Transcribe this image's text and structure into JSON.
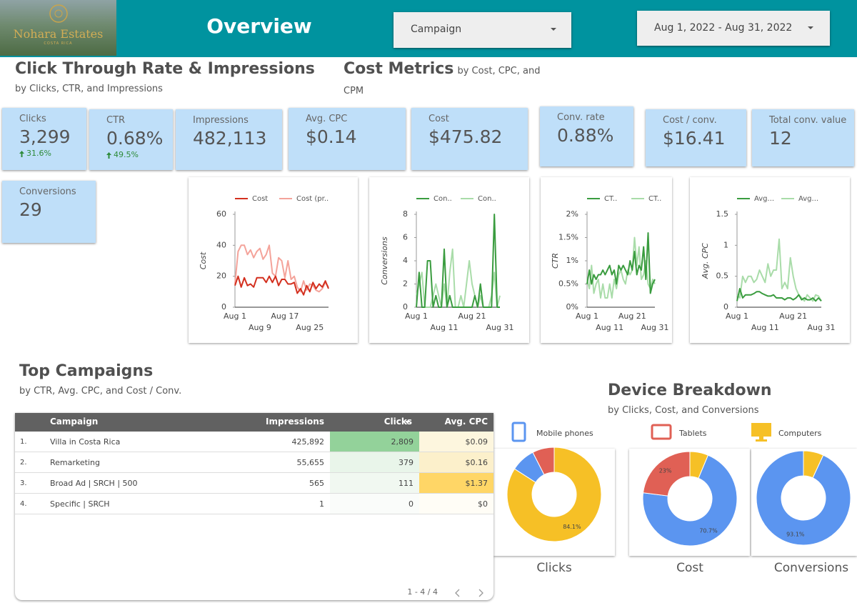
{
  "header": {
    "logo_text": "Nohara Estates",
    "logo_subtext": "COSTA RICA",
    "title": "Overview",
    "campaign_filter": "Campaign",
    "date_range": "Aug 1, 2022 - Aug 31, 2022"
  },
  "sections": {
    "ctr": {
      "title": "Click Through Rate & Impressions",
      "subtitle": "by Clicks, CTR, and Impressions"
    },
    "cost": {
      "title": "Cost Metrics",
      "subtitle": "by Cost, CPC, and CPM"
    },
    "campaigns": {
      "title": "Top Campaigns",
      "subtitle": "by CTR, Avg. CPC, and Cost / Conv."
    },
    "devices": {
      "title": "Device Breakdown",
      "subtitle": "by Clicks, Cost, and Conversions"
    }
  },
  "kpis": [
    {
      "label": "Clicks",
      "value": "3,299",
      "delta": "31.6%"
    },
    {
      "label": "CTR",
      "value": "0.68%",
      "delta": "49.5%"
    },
    {
      "label": "Impressions",
      "value": "482,113"
    },
    {
      "label": "Avg. CPC",
      "value": "$0.14"
    },
    {
      "label": "Cost",
      "value": "$475.82"
    },
    {
      "label": "Conv. rate",
      "value": "0.88%"
    },
    {
      "label": "Cost / conv.",
      "value": "$16.41"
    },
    {
      "label": "Total conv. value",
      "value": "12"
    },
    {
      "label": "Conversions",
      "value": "29"
    }
  ],
  "chart_data": [
    {
      "type": "line",
      "y_label": "Cost",
      "categories": [
        "Aug 1",
        null,
        null,
        null,
        null,
        null,
        null,
        null,
        "Aug 9",
        null,
        null,
        null,
        null,
        null,
        null,
        null,
        "Aug 17",
        null,
        null,
        null,
        null,
        null,
        null,
        null,
        "Aug 25",
        null,
        null,
        null,
        null,
        null,
        null
      ],
      "ylim": [
        0,
        60
      ],
      "yticks": [
        0,
        20,
        40,
        60
      ],
      "grid": false,
      "series": [
        {
          "name": "Cost",
          "color": "#d32f1e",
          "values": [
            14,
            20,
            13,
            19,
            14,
            15,
            13,
            19,
            19,
            19,
            16,
            20,
            16,
            20,
            14,
            18,
            18,
            15,
            15,
            16,
            9,
            12,
            8,
            14,
            10,
            16,
            12,
            15,
            13,
            17,
            12
          ]
        },
        {
          "name": "Cost (pr..",
          "color": "#f4a39a",
          "values": [
            15,
            36,
            40,
            40,
            34,
            37,
            32,
            36,
            38,
            31,
            34,
            40,
            22,
            20,
            32,
            30,
            19,
            30,
            18,
            20,
            13,
            10,
            17,
            11,
            15,
            14,
            11,
            10,
            12,
            16,
            13
          ]
        }
      ]
    },
    {
      "type": "line",
      "y_label": "Conversions",
      "categories": [
        "Aug 1",
        null,
        null,
        null,
        null,
        null,
        null,
        null,
        null,
        null,
        "Aug 11",
        null,
        null,
        null,
        null,
        null,
        null,
        null,
        null,
        null,
        "Aug 21",
        null,
        null,
        null,
        null,
        null,
        null,
        null,
        null,
        null,
        "Aug 31"
      ],
      "ylim": [
        0,
        8
      ],
      "yticks": [
        0,
        2,
        4,
        6,
        8
      ],
      "grid": false,
      "series": [
        {
          "name": "Con..",
          "color": "#3a9c3f",
          "values": [
            0,
            3,
            0,
            0,
            4,
            4,
            0,
            1,
            0,
            0,
            5,
            0,
            1,
            0,
            0,
            0,
            0,
            0,
            0,
            0,
            0,
            1,
            0,
            2,
            0,
            0,
            0,
            0,
            8,
            0,
            0
          ]
        },
        {
          "name": "Con..",
          "color": "#a9dca9",
          "values": [
            1,
            2,
            3,
            0,
            0,
            0,
            1,
            2,
            1,
            0,
            2,
            0,
            3,
            5,
            0,
            0,
            1,
            0,
            2,
            4,
            2,
            1,
            0,
            1,
            0,
            0,
            0,
            1,
            3,
            0,
            1
          ]
        }
      ]
    },
    {
      "type": "line",
      "y_label": "CTR",
      "categories": [
        "Aug 1",
        null,
        null,
        null,
        null,
        null,
        null,
        null,
        null,
        null,
        "Aug 11",
        null,
        null,
        null,
        null,
        null,
        null,
        null,
        null,
        null,
        "Aug 21",
        null,
        null,
        null,
        null,
        null,
        null,
        null,
        null,
        null,
        "Aug 31"
      ],
      "ylim": [
        0,
        2
      ],
      "yticks": [
        {
          "value": 0,
          "label": "0%"
        },
        {
          "value": 0.5,
          "label": "0.5%"
        },
        {
          "value": 1,
          "label": "1%"
        },
        {
          "value": 1.5,
          "label": "1.5%"
        },
        {
          "value": 2,
          "label": "2%"
        }
      ],
      "grid": false,
      "series": [
        {
          "name": "CT..",
          "color": "#3a9c3f",
          "values": [
            0.5,
            0.8,
            0.5,
            0.7,
            0.6,
            0.7,
            0.7,
            0.8,
            0.7,
            0.8,
            0.9,
            0.7,
            0.8,
            0.5,
            0.9,
            0.8,
            0.9,
            0.8,
            0.7,
            1.0,
            0.8,
            1.2,
            0.7,
            0.9,
            0.8,
            1.3,
            0.6,
            1.6,
            0.3,
            0.5,
            0.6
          ]
        },
        {
          "name": "CT..",
          "color": "#a9dca9",
          "values": [
            0.6,
            0.4,
            0.9,
            0.3,
            0.5,
            0.6,
            0.2,
            0.5,
            0.2,
            0.2,
            0.5,
            0.2,
            0.6,
            0.4,
            0.7,
            0.8,
            0.6,
            0.5,
            0.8,
            0.7,
            0.8,
            1.5,
            0.9,
            1.3,
            0.6,
            0.7,
            1.0,
            0.5,
            0.4,
            0.6,
            0.5
          ]
        }
      ]
    },
    {
      "type": "line",
      "y_label": "Avg. CPC",
      "categories": [
        "Aug 1",
        null,
        null,
        null,
        null,
        null,
        null,
        null,
        null,
        null,
        "Aug 11",
        null,
        null,
        null,
        null,
        null,
        null,
        null,
        null,
        null,
        "Aug 21",
        null,
        null,
        null,
        null,
        null,
        null,
        null,
        null,
        null,
        "Aug 31"
      ],
      "ylim": [
        0,
        1.5
      ],
      "yticks": [
        0,
        0.5,
        1,
        1.5
      ],
      "grid": false,
      "series": [
        {
          "name": "Avg...",
          "color": "#3a9c3f",
          "values": [
            0.1,
            0.3,
            0.15,
            0.2,
            0.2,
            0.2,
            0.22,
            0.25,
            0.25,
            0.22,
            0.2,
            0.18,
            0.18,
            0.2,
            0.15,
            0.15,
            0.15,
            0.12,
            0.15,
            0.15,
            0.12,
            0.15,
            0.2,
            0.12,
            0.15,
            0.12,
            0.12,
            0.15,
            0.1,
            0.15,
            0.1
          ]
        },
        {
          "name": "Avg...",
          "color": "#a9dca9",
          "values": [
            0.2,
            0.15,
            0.5,
            0.4,
            0.5,
            0.5,
            0.4,
            0.45,
            0.6,
            0.5,
            0.4,
            0.7,
            0.5,
            0.6,
            0.6,
            1.1,
            0.3,
            0.4,
            0.3,
            0.8,
            0.5,
            0.3,
            0.2,
            0.15,
            0.1,
            0.2,
            0.15,
            0.1,
            0.2,
            0.18,
            0.1
          ]
        }
      ]
    },
    {
      "type": "pie",
      "title": "Clicks",
      "categories": [
        "Mobile phones",
        "Tablets",
        "Computers"
      ],
      "colors": [
        "#5b95f0",
        "#e06055",
        "#f6c026"
      ],
      "values": [
        8.4,
        7.5,
        84.1
      ],
      "value_labels": [
        null,
        null,
        "84.1%"
      ]
    },
    {
      "type": "pie",
      "title": "Cost",
      "categories": [
        "Mobile phones",
        "Tablets",
        "Computers"
      ],
      "colors": [
        "#5b95f0",
        "#e06055",
        "#f6c026"
      ],
      "values": [
        70.7,
        23,
        6.3
      ],
      "value_labels": [
        "70.7%",
        "23%",
        null
      ]
    },
    {
      "type": "pie",
      "title": "Conversions",
      "categories": [
        "Mobile phones",
        "Tablets",
        "Computers"
      ],
      "colors": [
        "#5b95f0",
        "#e06055",
        "#f6c026"
      ],
      "values": [
        93.1,
        0,
        6.9
      ],
      "value_labels": [
        "93.1%",
        null,
        null
      ]
    }
  ],
  "table": {
    "columns": [
      "Campaign",
      "Impressions",
      "Clicks",
      "Avg. CPC"
    ],
    "rows": [
      [
        "1.",
        "Villa in Costa Rica",
        "425,892",
        "2,809",
        "$0.09"
      ],
      [
        "2.",
        "Remarketing",
        "55,655",
        "379",
        "$0.16"
      ],
      [
        "3.",
        "Broad Ad | SRCH | 500",
        "565",
        "111",
        "$1.37"
      ],
      [
        "4.",
        "Specific | SRCH",
        "1",
        "0",
        "$0"
      ]
    ],
    "clicks_colors": [
      "#93d29a",
      "#e9f5ea",
      "#f1f8f1",
      "#fafcfa"
    ],
    "cpc_colors": [
      "#fdf6de",
      "#fcf0cb",
      "#ffd666",
      "#fffdf6"
    ],
    "pagination": "1 - 4 / 4"
  }
}
